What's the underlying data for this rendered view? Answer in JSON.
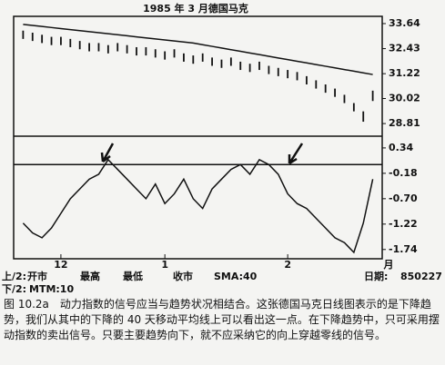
{
  "chart_data": [
    {
      "type": "ohlc",
      "title": "1985 年 3 月德国马克",
      "xlim": [
        -1,
        38
      ],
      "high": [
        33.3,
        33.2,
        33.1,
        33.0,
        33.0,
        32.9,
        32.8,
        32.7,
        32.7,
        32.6,
        32.7,
        32.6,
        32.5,
        32.5,
        32.4,
        32.3,
        32.4,
        32.2,
        32.1,
        32.2,
        32.0,
        31.9,
        32.0,
        31.8,
        31.7,
        31.8,
        31.6,
        31.5,
        31.4,
        31.3,
        31.1,
        30.9,
        30.7,
        30.5,
        30.2,
        29.8,
        29.4,
        30.4
      ],
      "low": [
        32.9,
        32.8,
        32.7,
        32.6,
        32.6,
        32.5,
        32.4,
        32.3,
        32.3,
        32.2,
        32.3,
        32.2,
        32.1,
        32.1,
        32.0,
        31.9,
        32.0,
        31.8,
        31.7,
        31.8,
        31.6,
        31.5,
        31.6,
        31.4,
        31.3,
        31.4,
        31.2,
        31.1,
        31.0,
        30.9,
        30.7,
        30.5,
        30.3,
        30.1,
        29.8,
        29.4,
        28.9,
        29.9
      ],
      "sma": [
        33.6,
        33.55,
        33.5,
        33.45,
        33.4,
        33.35,
        33.3,
        33.25,
        33.2,
        33.15,
        33.1,
        33.05,
        33.0,
        32.95,
        32.9,
        32.85,
        32.8,
        32.75,
        32.7,
        32.62,
        32.54,
        32.46,
        32.38,
        32.3,
        32.22,
        32.14,
        32.06,
        31.98,
        31.9,
        31.82,
        31.74,
        31.66,
        31.58,
        31.5,
        31.42,
        31.34,
        31.26,
        31.18
      ],
      "color": "#111111",
      "ylim": [
        28.2,
        33.99
      ],
      "yticks": [
        33.64,
        32.43,
        31.22,
        30.02,
        28.81
      ]
    },
    {
      "type": "line",
      "xlim": [
        -1,
        38
      ],
      "values": [
        -1.2,
        -1.4,
        -1.5,
        -1.3,
        -1.0,
        -0.7,
        -0.5,
        -0.3,
        -0.2,
        0.1,
        -0.1,
        -0.3,
        -0.5,
        -0.7,
        -0.4,
        -0.8,
        -0.6,
        -0.3,
        -0.7,
        -0.9,
        -0.5,
        -0.3,
        -0.1,
        0.0,
        -0.2,
        0.1,
        0.0,
        -0.2,
        -0.6,
        -0.8,
        -0.9,
        -1.1,
        -1.3,
        -1.5,
        -1.6,
        -1.8,
        -1.2,
        -0.3
      ],
      "color": "#111111",
      "hlines": [
        0
      ],
      "ylim": [
        -1.93,
        0.58
      ],
      "yticks": [
        0.34,
        -0.18,
        {
          "value": -0.7,
          "label": "-0.70"
        },
        -1.22,
        -1.74
      ],
      "xticks": [
        {
          "value": 4,
          "label": "12"
        },
        {
          "value": 15,
          "label": "1"
        },
        {
          "value": 28,
          "label": "2"
        }
      ],
      "x_unit": "月"
    }
  ],
  "footer": {
    "row1": [
      "上/2:",
      "开市",
      "最高",
      "最低",
      "收市",
      "SMA:40",
      "日期:",
      "850227"
    ],
    "row2": [
      "下/2:",
      "MTM:10"
    ]
  },
  "caption": "图 10.2a　动力指数的信号应当与趋势状况相结合。这张德国马克日线图表示的是下降趋势，我们从其中的下降的 40 天移动平均线上可以看出这一点。在下降趋势中，只可采用摆动指数的卖出信号。只要主要趋势向下，就不应采纳它的向上穿越零线的信号。"
}
